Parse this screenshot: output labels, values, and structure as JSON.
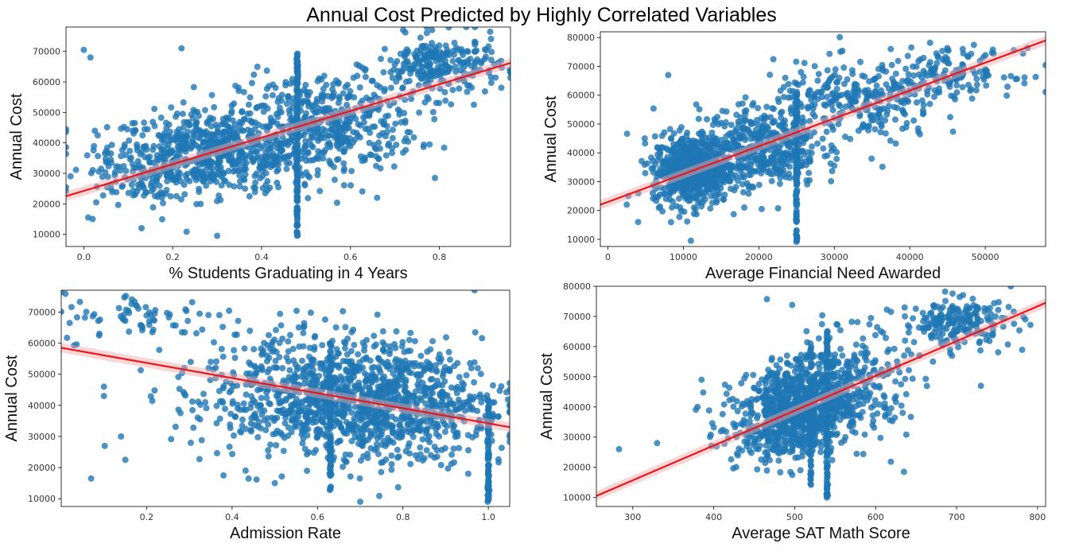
{
  "figure": {
    "title": "Annual Cost Predicted by Highly Correlated Variables"
  },
  "chart_data": [
    {
      "type": "scatter",
      "title": "",
      "xlabel": "% Students Graduating in 4 Years",
      "ylabel": "Annual Cost",
      "xlim": [
        -0.04,
        0.96
      ],
      "ylim": [
        6000,
        78000
      ],
      "xticks": [
        0.0,
        0.2,
        0.4,
        0.6,
        0.8
      ],
      "xtick_labels": [
        "0.0",
        "0.2",
        "0.4",
        "0.6",
        "0.8"
      ],
      "yticks": [
        10000,
        20000,
        30000,
        40000,
        50000,
        60000,
        70000
      ],
      "grid": false,
      "legend": "none",
      "point_color": "#1f77b4",
      "line_color": "#e8171b",
      "regression": {
        "x": [
          -0.04,
          0.96
        ],
        "y": [
          22500,
          66200
        ]
      },
      "point_clusters": [
        {
          "x": 0.3,
          "y": 37000,
          "sx": 0.12,
          "sy": 6500,
          "n": 650
        },
        {
          "x": 0.55,
          "y": 47000,
          "sx": 0.1,
          "sy": 8000,
          "n": 450
        },
        {
          "x": 0.8,
          "y": 65000,
          "sx": 0.07,
          "sy": 5000,
          "n": 250
        },
        {
          "x": 0.15,
          "y": 30000,
          "sx": 0.08,
          "sy": 5000,
          "n": 120
        }
      ],
      "vertical_stack": {
        "x": 0.48,
        "y_range": [
          9000,
          70000
        ],
        "n": 140
      },
      "outliers": [
        [
          0.0,
          70500
        ],
        [
          0.015,
          68000
        ],
        [
          0.22,
          71000
        ],
        [
          0.01,
          15500
        ],
        [
          0.02,
          15000
        ],
        [
          0.13,
          12000
        ],
        [
          0.3,
          9500
        ],
        [
          0.66,
          22000
        ],
        [
          0.79,
          28500
        ]
      ]
    },
    {
      "type": "scatter",
      "title": "",
      "xlabel": "Average Financial Need Awarded",
      "ylabel": "Annual Cost",
      "xlim": [
        -1000,
        58000
      ],
      "ylim": [
        7500,
        82000
      ],
      "xticks": [
        0,
        10000,
        20000,
        30000,
        40000,
        50000
      ],
      "xtick_labels": [
        "0",
        "10000",
        "20000",
        "30000",
        "40000",
        "50000"
      ],
      "yticks": [
        10000,
        20000,
        30000,
        40000,
        50000,
        60000,
        70000,
        80000
      ],
      "grid": false,
      "legend": "none",
      "point_color": "#1f77b4",
      "line_color": "#e8171b",
      "regression": {
        "x": [
          -1000,
          58000
        ],
        "y": [
          22000,
          79000
        ]
      },
      "point_clusters": [
        {
          "x": 11000,
          "y": 34000,
          "sx": 2500,
          "sy": 6000,
          "n": 650
        },
        {
          "x": 20000,
          "y": 42000,
          "sx": 4000,
          "sy": 7000,
          "n": 450
        },
        {
          "x": 33000,
          "y": 57000,
          "sx": 5500,
          "sy": 7000,
          "n": 280
        },
        {
          "x": 45000,
          "y": 68000,
          "sx": 4500,
          "sy": 4000,
          "n": 150
        }
      ],
      "vertical_stack": {
        "x": 25000,
        "y_range": [
          9000,
          62000
        ],
        "n": 130
      },
      "outliers": [
        [
          8000,
          67000
        ],
        [
          2500,
          22000
        ],
        [
          4000,
          16000
        ],
        [
          11000,
          9500
        ],
        [
          30000,
          35500
        ],
        [
          50000,
          69000
        ],
        [
          55000,
          74500
        ]
      ]
    },
    {
      "type": "scatter",
      "title": "",
      "xlabel": "Admission Rate",
      "ylabel": "Annual Cost",
      "xlim": [
        0.0,
        1.05
      ],
      "ylim": [
        7500,
        77000
      ],
      "xticks": [
        0.2,
        0.4,
        0.6,
        0.8,
        1.0
      ],
      "xtick_labels": [
        "0.2",
        "0.4",
        "0.6",
        "0.8",
        "1.0"
      ],
      "yticks": [
        10000,
        20000,
        30000,
        40000,
        50000,
        60000,
        70000
      ],
      "grid": false,
      "legend": "none",
      "point_color": "#1f77b4",
      "line_color": "#e8171b",
      "regression": {
        "x": [
          0.0,
          1.05
        ],
        "y": [
          58500,
          33000
        ]
      },
      "point_clusters": [
        {
          "x": 0.7,
          "y": 42000,
          "sx": 0.14,
          "sy": 9000,
          "n": 900
        },
        {
          "x": 0.5,
          "y": 45000,
          "sx": 0.12,
          "sy": 12000,
          "n": 250
        },
        {
          "x": 0.2,
          "y": 68000,
          "sx": 0.1,
          "sy": 4000,
          "n": 70
        },
        {
          "x": 0.85,
          "y": 38000,
          "sx": 0.1,
          "sy": 9000,
          "n": 200
        }
      ],
      "vertical_stack": {
        "x": 0.63,
        "y_range": [
          12000,
          60000
        ],
        "n": 100
      },
      "vertical_stack_2": {
        "x": 1.0,
        "y_range": [
          9000,
          42000
        ],
        "n": 90
      },
      "outliers": [
        [
          0.07,
          16500
        ],
        [
          0.14,
          30000
        ],
        [
          0.15,
          22500
        ],
        [
          0.1,
          46000
        ],
        [
          0.1,
          43000
        ],
        [
          0.7,
          9000
        ],
        [
          0.38,
          17500
        ],
        [
          0.5,
          15000
        ]
      ]
    },
    {
      "type": "scatter",
      "title": "",
      "xlabel": "Average SAT Math Score",
      "ylabel": "Annual Cost",
      "xlim": [
        255,
        810
      ],
      "ylim": [
        7000,
        80000
      ],
      "xticks": [
        300,
        400,
        500,
        600,
        700,
        800
      ],
      "xtick_labels": [
        "300",
        "400",
        "500",
        "600",
        "700",
        "800"
      ],
      "yticks": [
        10000,
        20000,
        30000,
        40000,
        50000,
        60000,
        70000,
        80000
      ],
      "grid": false,
      "legend": "none",
      "point_color": "#1f77b4",
      "line_color": "#e8171b",
      "regression": {
        "x": [
          255,
          810
        ],
        "y": [
          10500,
          74500
        ]
      },
      "point_clusters": [
        {
          "x": 505,
          "y": 39000,
          "sx": 30,
          "sy": 7000,
          "n": 700
        },
        {
          "x": 560,
          "y": 47000,
          "sx": 40,
          "sy": 9000,
          "n": 350
        },
        {
          "x": 700,
          "y": 68000,
          "sx": 35,
          "sy": 4000,
          "n": 200
        },
        {
          "x": 450,
          "y": 31000,
          "sx": 30,
          "sy": 6000,
          "n": 120
        }
      ],
      "vertical_stack": {
        "x": 540,
        "y_range": [
          9000,
          66000
        ],
        "n": 120
      },
      "vertical_stack_2": {
        "x": 520,
        "y_range": [
          12000,
          62000
        ],
        "n": 60
      },
      "outliers": [
        [
          283,
          26000
        ],
        [
          330,
          28000
        ],
        [
          385,
          49000
        ],
        [
          380,
          40000
        ],
        [
          635,
          18500
        ],
        [
          730,
          47000
        ],
        [
          785,
          69000
        ]
      ]
    }
  ]
}
